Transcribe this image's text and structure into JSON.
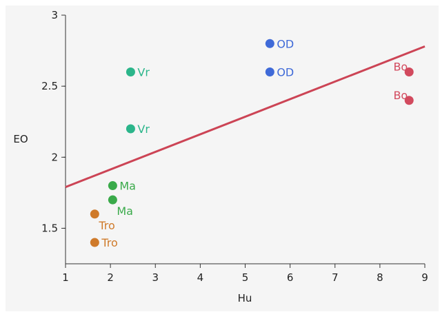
{
  "chart_data": {
    "type": "scatter",
    "title": "",
    "xlabel": "Hu",
    "ylabel": "EO",
    "xlim": [
      1,
      9
    ],
    "ylim": [
      1.25,
      3
    ],
    "x_ticks": [
      "1",
      "2",
      "3",
      "4",
      "5",
      "6",
      "7",
      "8",
      "9"
    ],
    "y_ticks": [
      "1.5",
      "2",
      "2.5",
      "3"
    ],
    "grid": false,
    "points": [
      {
        "label": "Vr",
        "x": 2.45,
        "y": 2.6,
        "color": "#2bb58a",
        "label_pos": "right"
      },
      {
        "label": "Vr",
        "x": 2.45,
        "y": 2.2,
        "color": "#2bb58a",
        "label_pos": "right"
      },
      {
        "label": "Ma",
        "x": 2.05,
        "y": 1.8,
        "color": "#3aaa4a",
        "label_pos": "right"
      },
      {
        "label": "Ma",
        "x": 2.05,
        "y": 1.7,
        "color": "#3aaa4a",
        "label_pos": "below-right"
      },
      {
        "label": "Tro",
        "x": 1.65,
        "y": 1.6,
        "color": "#cf7a2a",
        "label_pos": "below-right"
      },
      {
        "label": "Tro",
        "x": 1.65,
        "y": 1.4,
        "color": "#cf7a2a",
        "label_pos": "right"
      },
      {
        "label": "OD",
        "x": 5.55,
        "y": 2.8,
        "color": "#3f6ad8",
        "label_pos": "right"
      },
      {
        "label": "OD",
        "x": 5.55,
        "y": 2.6,
        "color": "#3f6ad8",
        "label_pos": "right"
      },
      {
        "label": "Bo",
        "x": 8.65,
        "y": 2.6,
        "color": "#d24a5e",
        "label_pos": "above-left"
      },
      {
        "label": "Bo",
        "x": 8.65,
        "y": 2.4,
        "color": "#d24a5e",
        "label_pos": "above-left"
      }
    ],
    "trend_line": {
      "x": [
        1,
        9
      ],
      "y": [
        1.79,
        2.78
      ],
      "color": "#cc4455"
    }
  }
}
